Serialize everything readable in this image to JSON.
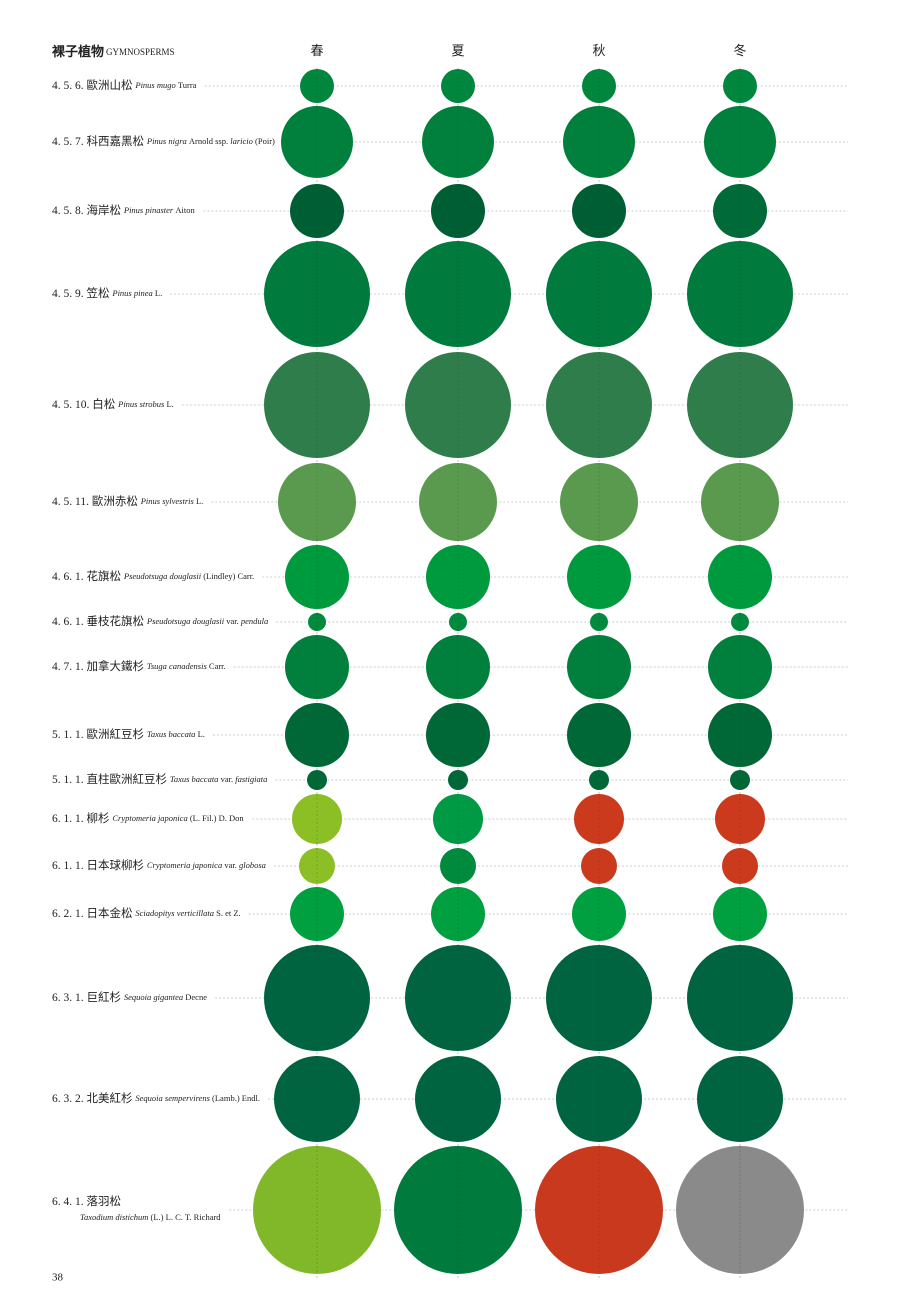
{
  "header": {
    "title": "裸子植物",
    "subtitle": "GYMNOSPERMS"
  },
  "seasons": [
    "春",
    "夏",
    "秋",
    "冬"
  ],
  "rows": [
    {
      "label": [
        {
          "text": "4. 5. 6. 歐洲山松 ",
          "italic": false
        },
        {
          "text": "Pinus mugo ",
          "italic": true
        },
        {
          "text": "Turra",
          "italic": false
        }
      ],
      "colors": [
        "#00873d",
        "#00873d",
        "#00873d",
        "#00873d"
      ]
    },
    {
      "label": [
        {
          "text": "4. 5. 7. 科西嘉黑松 ",
          "italic": false
        },
        {
          "text": "Pinus nigra ",
          "italic": true
        },
        {
          "text": "Arnold ssp. ",
          "italic": false
        },
        {
          "text": "laricio ",
          "italic": true
        },
        {
          "text": "(Poir)",
          "italic": false
        }
      ],
      "colors": [
        "#00803c",
        "#00803c",
        "#00803c",
        "#00803c"
      ]
    },
    {
      "label": [
        {
          "text": "4. 5. 8. 海岸松 ",
          "italic": false
        },
        {
          "text": "Pinus pinaster ",
          "italic": true
        },
        {
          "text": "Aiton",
          "italic": false
        }
      ],
      "colors": [
        "#005e35",
        "#005e35",
        "#005e35",
        "#006b38"
      ]
    },
    {
      "label": [
        {
          "text": "4. 5. 9. 笠松 ",
          "italic": false
        },
        {
          "text": "Pinus pinea ",
          "italic": true
        },
        {
          "text": "L.",
          "italic": false
        }
      ],
      "colors": [
        "#007a3d",
        "#007a3d",
        "#007a3d",
        "#007a3d"
      ]
    },
    {
      "label": [
        {
          "text": "4. 5. 10. 白松 ",
          "italic": false
        },
        {
          "text": "Pinus strobus ",
          "italic": true
        },
        {
          "text": "L.",
          "italic": false
        }
      ],
      "colors": [
        "#2f7d4a",
        "#2f7d4a",
        "#2f7d4a",
        "#2f7d4a"
      ]
    },
    {
      "label": [
        {
          "text": "4. 5. 11. 歐洲赤松 ",
          "italic": false
        },
        {
          "text": "Pinus sylvestris ",
          "italic": true
        },
        {
          "text": "L.",
          "italic": false
        }
      ],
      "colors": [
        "#5a9a4e",
        "#5a9a4e",
        "#5a9a4e",
        "#5a9a4e"
      ]
    },
    {
      "label": [
        {
          "text": "4. 6. 1. 花旗松 ",
          "italic": false
        },
        {
          "text": "Pseudotsuga douglasii ",
          "italic": true
        },
        {
          "text": "(Lindley) Carr.",
          "italic": false
        }
      ],
      "colors": [
        "#009a3e",
        "#009a3e",
        "#009a3e",
        "#009a3e"
      ]
    },
    {
      "label": [
        {
          "text": "4. 6. 1. 垂枝花旗松 ",
          "italic": false
        },
        {
          "text": "Pseudotsuga douglasii ",
          "italic": true
        },
        {
          "text": "var. ",
          "italic": false
        },
        {
          "text": "pendula",
          "italic": true
        }
      ],
      "colors": [
        "#008a3e",
        "#008a3e",
        "#008a3e",
        "#008a3e"
      ]
    },
    {
      "label": [
        {
          "text": "4. 7. 1. 加拿大鐵杉 ",
          "italic": false
        },
        {
          "text": "Tsuga canadensis ",
          "italic": true
        },
        {
          "text": "Carr.",
          "italic": false
        }
      ],
      "colors": [
        "#00803c",
        "#00803c",
        "#00803c",
        "#00803c"
      ]
    },
    {
      "label": [
        {
          "text": "5. 1. 1. 歐洲紅豆杉 ",
          "italic": false
        },
        {
          "text": "Taxus baccata ",
          "italic": true
        },
        {
          "text": "L.",
          "italic": false
        }
      ],
      "colors": [
        "#006837",
        "#006837",
        "#006837",
        "#006837"
      ]
    },
    {
      "label": [
        {
          "text": "5. 1. 1. 直柱歐洲紅豆杉 ",
          "italic": false
        },
        {
          "text": "Taxus baccata ",
          "italic": true
        },
        {
          "text": "var. ",
          "italic": false
        },
        {
          "text": "fastigiata",
          "italic": true
        }
      ],
      "colors": [
        "#006837",
        "#006837",
        "#006837",
        "#006837"
      ]
    },
    {
      "label": [
        {
          "text": "6. 1. 1. 柳杉 ",
          "italic": false
        },
        {
          "text": "Cryptomeria japonica ",
          "italic": true
        },
        {
          "text": "(L. Fil.) D. Don",
          "italic": false
        }
      ],
      "colors": [
        "#8cbf26",
        "#009a44",
        "#cc3a1e",
        "#cc3a1e"
      ]
    },
    {
      "label": [
        {
          "text": "6. 1. 1. 日本球柳杉 ",
          "italic": false
        },
        {
          "text": "Cryptomeria japonica ",
          "italic": true
        },
        {
          "text": "var. ",
          "italic": false
        },
        {
          "text": "globosa",
          "italic": true
        }
      ],
      "colors": [
        "#8cbf26",
        "#008a3e",
        "#cc3a1e",
        "#cc3a1e"
      ]
    },
    {
      "label": [
        {
          "text": "6. 2. 1. 日本金松 ",
          "italic": false
        },
        {
          "text": "Sciadopitys verticillata ",
          "italic": true
        },
        {
          "text": "S. et Z.",
          "italic": false
        }
      ],
      "colors": [
        "#00a040",
        "#00a040",
        "#00a040",
        "#00a040"
      ]
    },
    {
      "label": [
        {
          "text": "6. 3. 1. 巨紅杉 ",
          "italic": false
        },
        {
          "text": "Sequoia gigantea ",
          "italic": true
        },
        {
          "text": "Decne",
          "italic": false
        }
      ],
      "colors": [
        "#006440",
        "#006440",
        "#006440",
        "#006440"
      ]
    },
    {
      "label": [
        {
          "text": "6. 3. 2. 北美紅杉 ",
          "italic": false
        },
        {
          "text": "Sequoia sempervirens ",
          "italic": true
        },
        {
          "text": "(Lamb.) Endl.",
          "italic": false
        }
      ],
      "colors": [
        "#006440",
        "#006440",
        "#006440",
        "#006440"
      ]
    },
    {
      "label": [
        {
          "text": "6. 4. 1. 落羽松",
          "italic": false
        }
      ],
      "label2": [
        {
          "text": "Taxodium distichum ",
          "italic": true
        },
        {
          "text": "(L.) L. C. T. Richard",
          "italic": false
        }
      ],
      "colors": [
        "#80b829",
        "#007a3d",
        "#c8391e",
        "#8a8a8a"
      ]
    }
  ],
  "page_number": "38"
}
